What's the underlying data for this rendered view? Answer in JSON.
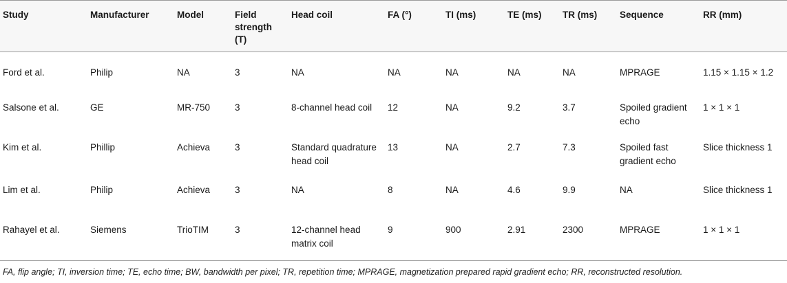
{
  "table": {
    "headers": [
      "Study",
      "Manufacturer",
      "Model",
      "Field strength (T)",
      "Head coil",
      "FA (°)",
      "TI (ms)",
      "TE (ms)",
      "TR (ms)",
      "Sequence",
      "RR (mm)"
    ],
    "rows": [
      [
        "Ford et al.",
        "Philip",
        "NA",
        "3",
        "NA",
        "NA",
        "NA",
        "NA",
        "NA",
        "MPRAGE",
        "1.15 × 1.15 × 1.2"
      ],
      [
        "Salsone et al.",
        "GE",
        "MR-750",
        "3",
        "8-channel head coil",
        "12",
        "NA",
        "9.2",
        "3.7",
        "Spoiled gradient echo",
        "1 × 1 × 1"
      ],
      [
        "Kim et al.",
        "Phillip",
        "Achieva",
        "3",
        "Standard quadrature head coil",
        "13",
        "NA",
        "2.7",
        "7.3",
        "Spoiled fast gradient echo",
        "Slice thickness 1"
      ],
      [
        "Lim et al.",
        "Philip",
        "Achieva",
        "3",
        "NA",
        "8",
        "NA",
        "4.6",
        "9.9",
        "NA",
        "Slice thickness 1"
      ],
      [
        "Rahayel et al.",
        "Siemens",
        "TrioTIM",
        "3",
        "12-channel head matrix coil",
        "9",
        "900",
        "2.91",
        "2300",
        "MPRAGE",
        "1 × 1 × 1"
      ]
    ]
  },
  "footnote": "FA, flip angle; TI, inversion time; TE, echo time; BW, bandwidth per pixel; TR, repetition time; MPRAGE, magnetization prepared rapid gradient echo; RR, reconstructed resolution."
}
